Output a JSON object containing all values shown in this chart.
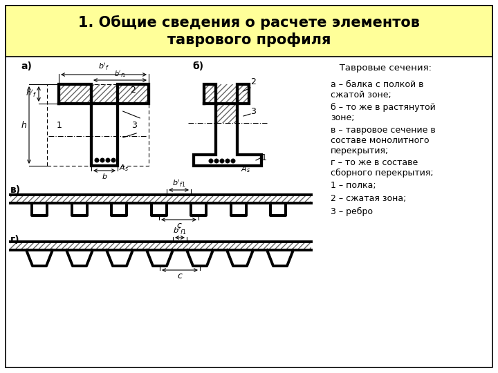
{
  "title": "1. Общие сведения о расчете элементов\nтаврового профиля",
  "title_bg": "#ffff99",
  "title_fontsize": 15,
  "bg_color": "#ffffff",
  "text_color": "#000000",
  "legend_title": "   Тавровые сечения:",
  "legend_items": [
    "а – балка с полкой в\nсжатой зоне;",
    "б – то же в растянутой\nзоне;",
    "в – тавровое сечение в\nсоставе монолитного\nперекрытия;",
    "г – то же в составе\nсборного перекрытия;",
    "1 – полка;",
    "2 – сжатая зона;",
    "3 – ребро"
  ],
  "hatch_pattern": "////",
  "line_width": 2.2,
  "thin_line": 0.8
}
